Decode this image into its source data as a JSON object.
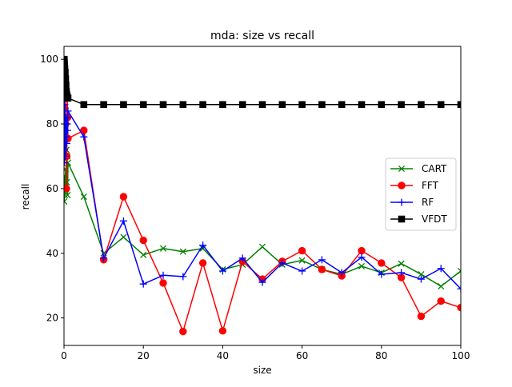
{
  "chart_data": {
    "type": "line",
    "title": "mda: size vs recall",
    "xlabel": "size",
    "ylabel": "recall",
    "xlim": [
      0,
      100
    ],
    "ylim": [
      11.5,
      104
    ],
    "xticks": [
      0,
      20,
      40,
      60,
      80,
      100
    ],
    "yticks": [
      20,
      40,
      60,
      80,
      100
    ],
    "grid": false,
    "legend_position": "center-right",
    "series": [
      {
        "name": "CART",
        "color": "#008000",
        "marker": "x",
        "points": [
          [
            0.05,
            56
          ],
          [
            0.1,
            60
          ],
          [
            0.15,
            64
          ],
          [
            0.2,
            58
          ],
          [
            0.3,
            62
          ],
          [
            0.4,
            66
          ],
          [
            0.5,
            60
          ],
          [
            0.6,
            72
          ],
          [
            0.7,
            62
          ],
          [
            0.8,
            70
          ],
          [
            0.9,
            58
          ],
          [
            1,
            68
          ],
          [
            5,
            57.5
          ],
          [
            10,
            40
          ],
          [
            15,
            45
          ],
          [
            20,
            39.5
          ],
          [
            25,
            41.5
          ],
          [
            30,
            40.5
          ],
          [
            35,
            41.5
          ],
          [
            40,
            35
          ],
          [
            45,
            36.5
          ],
          [
            50,
            42
          ],
          [
            55,
            36.5
          ],
          [
            60,
            37.8
          ],
          [
            65,
            35
          ],
          [
            70,
            33.5
          ],
          [
            75,
            36
          ],
          [
            80,
            34
          ],
          [
            85,
            36.8
          ],
          [
            90,
            33.5
          ],
          [
            95,
            29.8
          ],
          [
            100,
            34.5
          ]
        ]
      },
      {
        "name": "FFT",
        "color": "#ff0000",
        "marker": "o",
        "points": [
          [
            0.05,
            88
          ],
          [
            0.1,
            92
          ],
          [
            0.15,
            85
          ],
          [
            0.2,
            94
          ],
          [
            0.3,
            90
          ],
          [
            0.4,
            80
          ],
          [
            0.5,
            70
          ],
          [
            0.6,
            60
          ],
          [
            0.7,
            70
          ],
          [
            0.8,
            88
          ],
          [
            0.9,
            82
          ],
          [
            1,
            75.5
          ],
          [
            5,
            78
          ],
          [
            10,
            38
          ],
          [
            15,
            57.5
          ],
          [
            20,
            44
          ],
          [
            25,
            30.8
          ],
          [
            30,
            15.8
          ],
          [
            35,
            37
          ],
          [
            40,
            16
          ],
          [
            45,
            37.5
          ],
          [
            50,
            32
          ],
          [
            55,
            37.5
          ],
          [
            60,
            40.8
          ],
          [
            65,
            35
          ],
          [
            70,
            33
          ],
          [
            75,
            40.8
          ],
          [
            80,
            37
          ],
          [
            85,
            32.5
          ],
          [
            90,
            20.5
          ],
          [
            95,
            25.2
          ],
          [
            100,
            23.2
          ]
        ]
      },
      {
        "name": "RF",
        "color": "#0000ff",
        "marker": "+",
        "points": [
          [
            0.05,
            68
          ],
          [
            0.1,
            80
          ],
          [
            0.15,
            72
          ],
          [
            0.2,
            86
          ],
          [
            0.3,
            78
          ],
          [
            0.4,
            70
          ],
          [
            0.5,
            76
          ],
          [
            0.6,
            82
          ],
          [
            0.7,
            74
          ],
          [
            0.8,
            80
          ],
          [
            0.9,
            78
          ],
          [
            1,
            84
          ],
          [
            5,
            76
          ],
          [
            10,
            38.5
          ],
          [
            15,
            50
          ],
          [
            20,
            30.5
          ],
          [
            25,
            33.2
          ],
          [
            30,
            32.8
          ],
          [
            35,
            42.5
          ],
          [
            40,
            34.5
          ],
          [
            45,
            38.5
          ],
          [
            50,
            31
          ],
          [
            55,
            37
          ],
          [
            60,
            34.5
          ],
          [
            65,
            38
          ],
          [
            70,
            34
          ],
          [
            75,
            38.8
          ],
          [
            80,
            33.5
          ],
          [
            85,
            34
          ],
          [
            90,
            32
          ],
          [
            95,
            35.3
          ],
          [
            100,
            29
          ]
        ]
      },
      {
        "name": "VFDT",
        "color": "#000000",
        "marker": "s",
        "points": [
          [
            0.05,
            100
          ],
          [
            0.1,
            99
          ],
          [
            0.15,
            98
          ],
          [
            0.2,
            97
          ],
          [
            0.3,
            96
          ],
          [
            0.4,
            94
          ],
          [
            0.5,
            92
          ],
          [
            0.6,
            90
          ],
          [
            0.7,
            89
          ],
          [
            0.8,
            88.5
          ],
          [
            0.9,
            88
          ],
          [
            1,
            88
          ],
          [
            5,
            86
          ],
          [
            10,
            86
          ],
          [
            15,
            86
          ],
          [
            20,
            86
          ],
          [
            25,
            86
          ],
          [
            30,
            86
          ],
          [
            35,
            86
          ],
          [
            40,
            86
          ],
          [
            45,
            86
          ],
          [
            50,
            86
          ],
          [
            55,
            86
          ],
          [
            60,
            86
          ],
          [
            65,
            86
          ],
          [
            70,
            86
          ],
          [
            75,
            86
          ],
          [
            80,
            86
          ],
          [
            85,
            86
          ],
          [
            90,
            86
          ],
          [
            95,
            86
          ],
          [
            100,
            86
          ]
        ]
      }
    ]
  }
}
